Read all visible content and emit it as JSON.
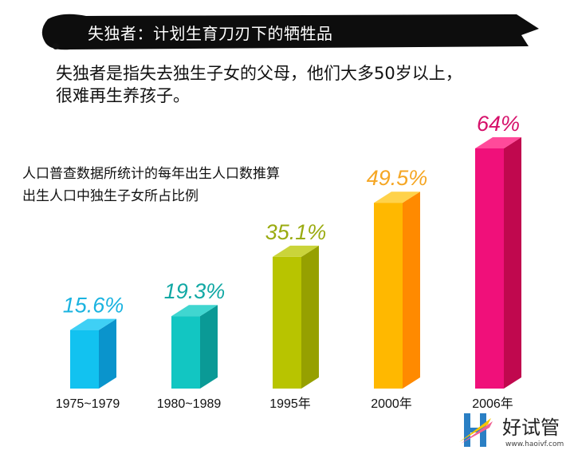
{
  "header": {
    "title": "失独者：计划生育刀刃下的牺牲品"
  },
  "intro": {
    "line1": "失独者是指失去独生子女的父母，他们大多50岁以上，",
    "line2": "很难再生养孩子。"
  },
  "chart_data": {
    "type": "bar",
    "title": "人口普查数据所统计的每年出生人口数推算",
    "subtitle": "出生人口中独生子女所占比例",
    "categories": [
      "1975~1979",
      "1980~1989",
      "1995年",
      "2000年",
      "2006年"
    ],
    "values": [
      15.6,
      19.3,
      35.1,
      49.5,
      64
    ],
    "labels": [
      "15.6%",
      "19.3%",
      "35.1%",
      "49.5%",
      "64%"
    ],
    "ylim": [
      0,
      64
    ],
    "grid": false,
    "style": "3d-bar",
    "colors": [
      {
        "front": "#12c2f0",
        "side": "#0a94cc",
        "top": "#3fd0f5",
        "label": "#1ab3e0"
      },
      {
        "front": "#12c6c2",
        "side": "#0a9a96",
        "top": "#40d6d0",
        "label": "#11a8a4"
      },
      {
        "front": "#b8c400",
        "side": "#96a000",
        "top": "#cad43a",
        "label": "#9aab10"
      },
      {
        "front": "#ffb800",
        "side": "#ff8a00",
        "top": "#ffd24a",
        "label": "#f5a623"
      },
      {
        "front": "#f0107a",
        "side": "#c0084e",
        "top": "#ff4a9a",
        "label": "#d6106a"
      }
    ]
  },
  "watermark": {
    "text": "好试管",
    "url": "www.haoivf.com"
  }
}
